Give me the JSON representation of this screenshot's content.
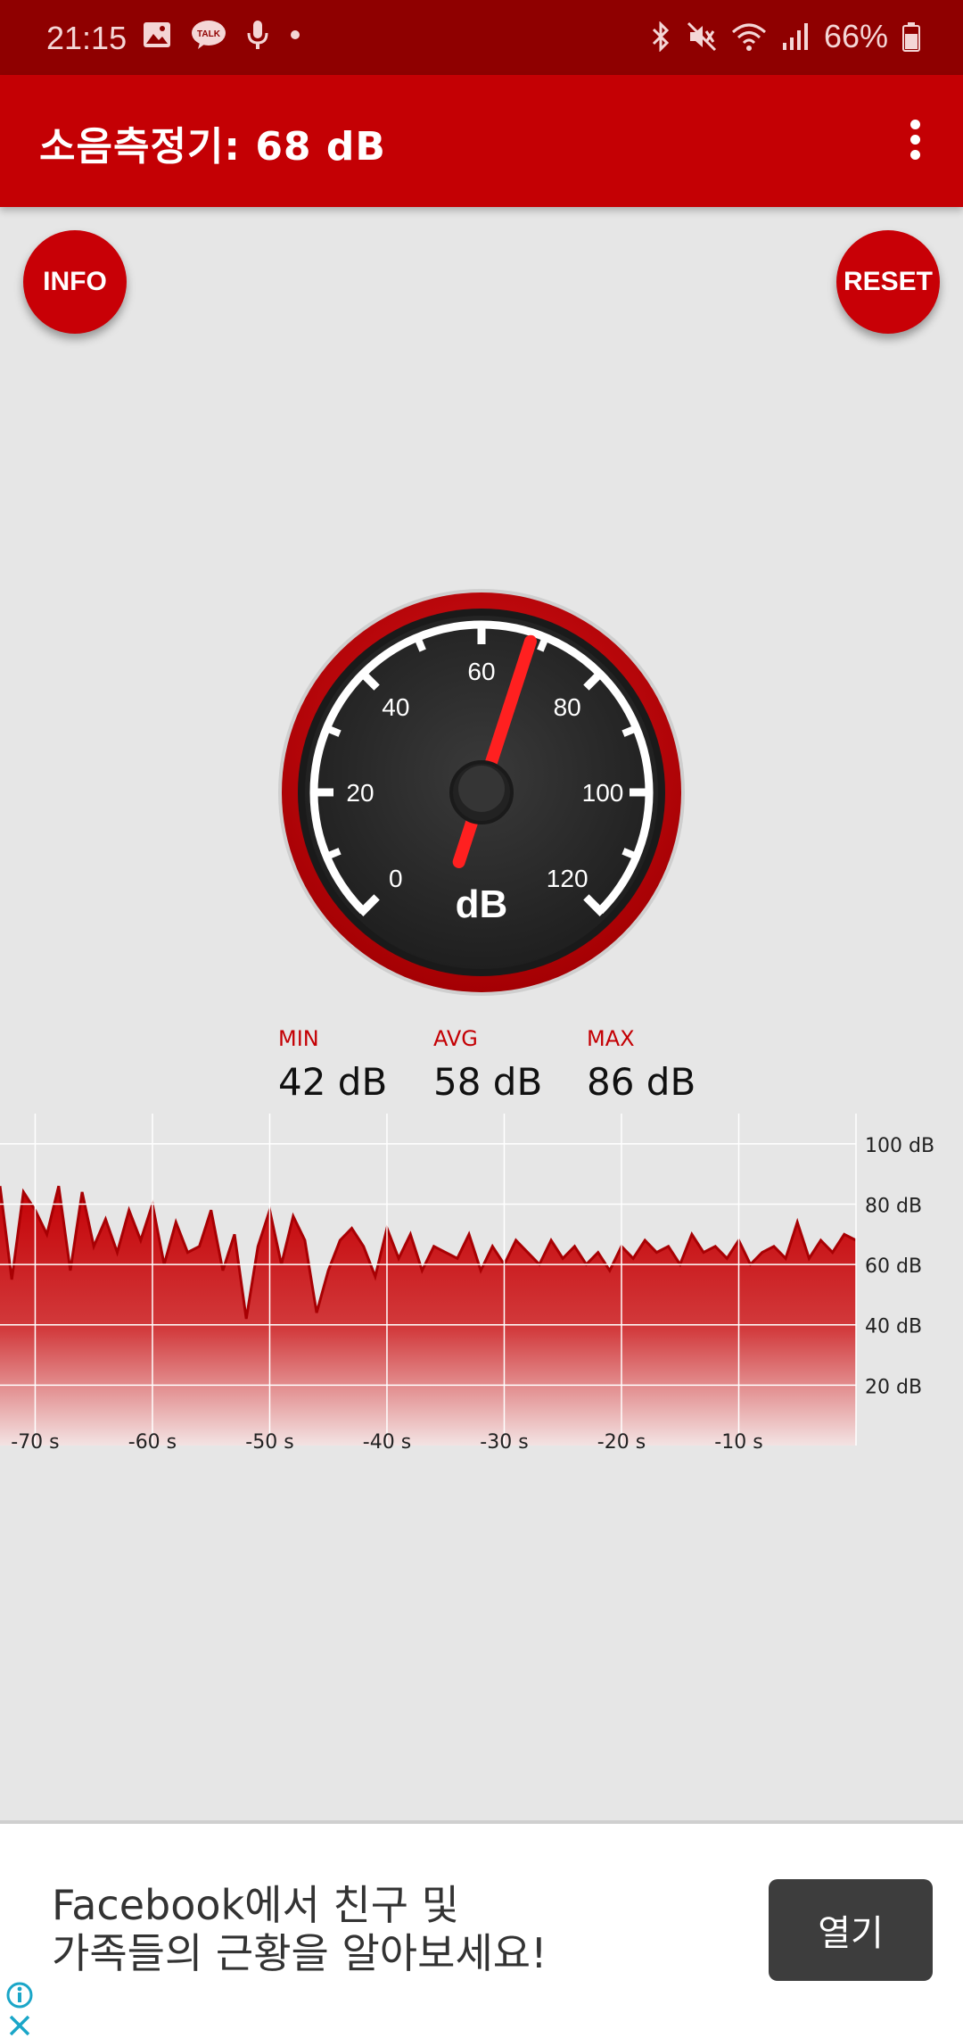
{
  "status_bar": {
    "time": "21:15",
    "battery": "66%",
    "left_icons": [
      "image-icon",
      "kakaotalk-icon",
      "microphone-icon",
      "dot-icon"
    ],
    "right_icons": [
      "bluetooth-icon",
      "mute-icon",
      "wifi-icon",
      "signal-icon",
      "battery-icon"
    ]
  },
  "app_bar": {
    "title": "소음측정기: 68 dB",
    "menu_icon": "overflow-menu-icon"
  },
  "buttons": {
    "info": "INFO",
    "reset": "RESET"
  },
  "gauge": {
    "unit": "dB",
    "tick_labels": [
      "0",
      "20",
      "40",
      "60",
      "80",
      "100",
      "120"
    ],
    "min": 0,
    "max": 120,
    "needle_value": 68,
    "colors": {
      "ring": "#c40004",
      "face": "#2a2a2a",
      "needle": "#ff2020"
    }
  },
  "stats": {
    "min_label": "MIN",
    "min_value": "42 dB",
    "avg_label": "AVG",
    "avg_value": "58 dB",
    "max_label": "MAX",
    "max_value": "86 dB"
  },
  "chart_data": {
    "type": "area",
    "x_tick_labels": [
      "-70 s",
      "-60 s",
      "-50 s",
      "-40 s",
      "-30 s",
      "-20 s",
      "-10 s"
    ],
    "y_tick_labels": [
      "100 dB",
      "80 dB",
      "60 dB",
      "40 dB",
      "20 dB"
    ],
    "xlim": [
      -73,
      0
    ],
    "ylim": [
      0,
      110
    ],
    "grid": true,
    "series": [
      {
        "x": [
          -73,
          -72,
          -71,
          -70,
          -69,
          -68,
          -67,
          -66,
          -65,
          -64,
          -63,
          -62,
          -61,
          -60,
          -59,
          -58,
          -57,
          -56,
          -55,
          -54,
          -53,
          -52,
          -51,
          -50,
          -49,
          -48,
          -47,
          -46,
          -45,
          -44,
          -43,
          -42,
          -41,
          -40,
          -39,
          -38,
          -37,
          -36,
          -35,
          -34,
          -33,
          -32,
          -31,
          -30,
          -29,
          -28,
          -27,
          -26,
          -25,
          -24,
          -23,
          -22,
          -21,
          -20,
          -19,
          -18,
          -17,
          -16,
          -15,
          -14,
          -13,
          -12,
          -11,
          -10,
          -9,
          -8,
          -7,
          -6,
          -5,
          -4,
          -3,
          -2,
          -1,
          0
        ],
        "values": [
          86,
          55,
          84,
          78,
          70,
          86,
          58,
          84,
          66,
          75,
          64,
          78,
          68,
          80,
          60,
          74,
          64,
          66,
          78,
          58,
          70,
          42,
          66,
          78,
          60,
          76,
          68,
          44,
          58,
          68,
          72,
          66,
          56,
          72,
          62,
          70,
          58,
          66,
          64,
          62,
          70,
          58,
          66,
          60,
          68,
          64,
          60,
          68,
          62,
          66,
          60,
          64,
          58,
          66,
          62,
          68,
          64,
          66,
          60,
          70,
          64,
          66,
          62,
          68,
          60,
          64,
          66,
          62,
          74,
          62,
          68,
          64,
          70,
          68
        ]
      }
    ]
  },
  "ad": {
    "line1": "Facebook에서 친구 및",
    "line2": "가족들의 근황을 알아보세요!",
    "button": "열기"
  }
}
